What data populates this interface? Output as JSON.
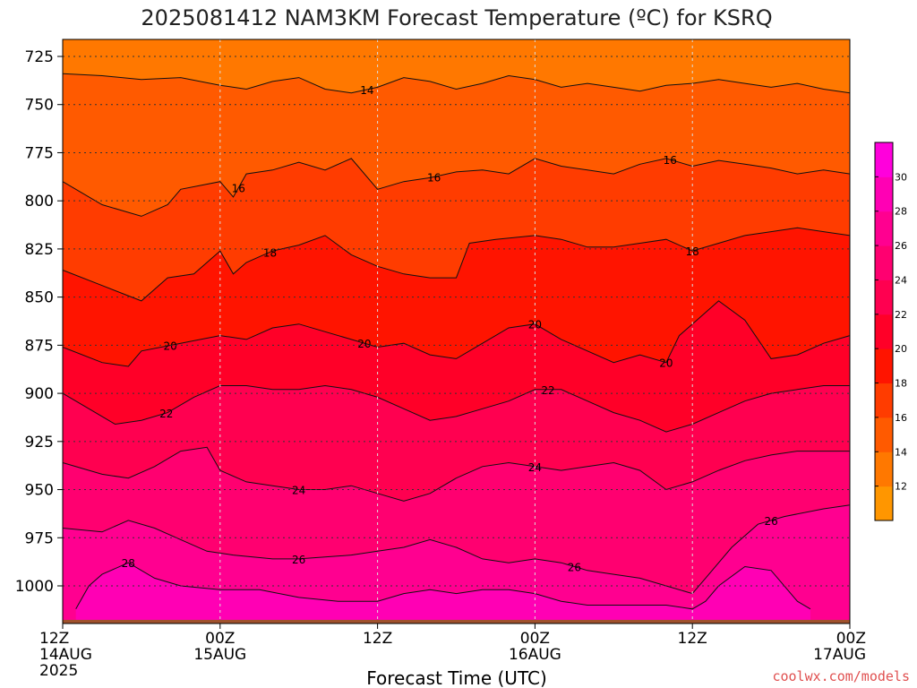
{
  "chart_data": {
    "type": "heatmap",
    "title": "2025081412 NAM3KM Forecast Temperature (ºC) for KSRQ",
    "xlabel": "Forecast Time (UTC)",
    "ylabel": "",
    "credit": "coolwx.com/models",
    "x_ticks": [
      {
        "hour": 0,
        "line1": "12Z",
        "line2": "14AUG",
        "line3": "2025"
      },
      {
        "hour": 12,
        "line1": "00Z",
        "line2": "15AUG",
        "line3": ""
      },
      {
        "hour": 24,
        "line1": "12Z",
        "line2": "",
        "line3": ""
      },
      {
        "hour": 36,
        "line1": "00Z",
        "line2": "16AUG",
        "line3": ""
      },
      {
        "hour": 48,
        "line1": "12Z",
        "line2": "",
        "line3": ""
      },
      {
        "hour": 60,
        "line1": "00Z",
        "line2": "17AUG",
        "line3": ""
      }
    ],
    "xlim_hours": [
      0,
      60
    ],
    "y_ticks": [
      "725",
      "750",
      "775",
      "800",
      "825",
      "850",
      "875",
      "900",
      "925",
      "950",
      "975",
      "1000"
    ],
    "ylim_hpa": [
      717,
      1017
    ],
    "y_axis_inverted": true,
    "grid": true,
    "colorbar": {
      "placement": "right",
      "ticks": [
        "12",
        "14",
        "16",
        "18",
        "20",
        "22",
        "24",
        "26",
        "28",
        "30"
      ],
      "bands": [
        {
          "from": 10,
          "to": 12,
          "color": "#ff9600"
        },
        {
          "from": 12,
          "to": 14,
          "color": "#ff7800"
        },
        {
          "from": 14,
          "to": 16,
          "color": "#ff5a00"
        },
        {
          "from": 16,
          "to": 18,
          "color": "#ff3c00"
        },
        {
          "from": 18,
          "to": 20,
          "color": "#ff1400"
        },
        {
          "from": 20,
          "to": 22,
          "color": "#ff0028"
        },
        {
          "from": 22,
          "to": 24,
          "color": "#ff0050"
        },
        {
          "from": 24,
          "to": 26,
          "color": "#ff0070"
        },
        {
          "from": 26,
          "to": 28,
          "color": "#ff0090"
        },
        {
          "from": 28,
          "to": 30,
          "color": "#ff00b4"
        },
        {
          "from": 30,
          "to": 32,
          "color": "#ff00dc"
        }
      ]
    },
    "contours": [
      {
        "level": 14,
        "label": "14",
        "label_at_hours": [
          23.2
        ],
        "points": [
          [
            0,
            734
          ],
          [
            3,
            735
          ],
          [
            6,
            737
          ],
          [
            9,
            736
          ],
          [
            12,
            740
          ],
          [
            14,
            742
          ],
          [
            16,
            738
          ],
          [
            18,
            736
          ],
          [
            20,
            742
          ],
          [
            22,
            744
          ],
          [
            24,
            741
          ],
          [
            26,
            736
          ],
          [
            28,
            738
          ],
          [
            30,
            742
          ],
          [
            32,
            739
          ],
          [
            34,
            735
          ],
          [
            36,
            737
          ],
          [
            38,
            741
          ],
          [
            40,
            739
          ],
          [
            42,
            741
          ],
          [
            44,
            743
          ],
          [
            46,
            740
          ],
          [
            48,
            739
          ],
          [
            50,
            737
          ],
          [
            52,
            739
          ],
          [
            54,
            741
          ],
          [
            56,
            739
          ],
          [
            58,
            742
          ],
          [
            60,
            744
          ]
        ]
      },
      {
        "level": 16,
        "label": "16",
        "label_at_hours": [
          13.4,
          28.3,
          46.3
        ],
        "points": [
          [
            0,
            790
          ],
          [
            3,
            802
          ],
          [
            6,
            808
          ],
          [
            8,
            802
          ],
          [
            9,
            794
          ],
          [
            12,
            790
          ],
          [
            13,
            798
          ],
          [
            14,
            786
          ],
          [
            16,
            784
          ],
          [
            18,
            780
          ],
          [
            20,
            784
          ],
          [
            22,
            778
          ],
          [
            24,
            794
          ],
          [
            26,
            790
          ],
          [
            28,
            788
          ],
          [
            30,
            785
          ],
          [
            32,
            784
          ],
          [
            34,
            786
          ],
          [
            36,
            778
          ],
          [
            38,
            782
          ],
          [
            40,
            784
          ],
          [
            42,
            786
          ],
          [
            44,
            781
          ],
          [
            46,
            778
          ],
          [
            48,
            782
          ],
          [
            50,
            779
          ],
          [
            52,
            781
          ],
          [
            54,
            783
          ],
          [
            56,
            786
          ],
          [
            58,
            784
          ],
          [
            60,
            786
          ]
        ]
      },
      {
        "level": 18,
        "label": "18",
        "label_at_hours": [
          15.8,
          48.0
        ],
        "points": [
          [
            0,
            836
          ],
          [
            3,
            844
          ],
          [
            6,
            852
          ],
          [
            8,
            840
          ],
          [
            10,
            838
          ],
          [
            12,
            826
          ],
          [
            13,
            838
          ],
          [
            14,
            832
          ],
          [
            16,
            826
          ],
          [
            18,
            823
          ],
          [
            20,
            818
          ],
          [
            22,
            828
          ],
          [
            24,
            834
          ],
          [
            26,
            838
          ],
          [
            28,
            840
          ],
          [
            30,
            840
          ],
          [
            31,
            822
          ],
          [
            33,
            820
          ],
          [
            36,
            818
          ],
          [
            38,
            820
          ],
          [
            40,
            824
          ],
          [
            42,
            824
          ],
          [
            44,
            822
          ],
          [
            46,
            820
          ],
          [
            48,
            826
          ],
          [
            50,
            822
          ],
          [
            52,
            818
          ],
          [
            54,
            816
          ],
          [
            56,
            814
          ],
          [
            58,
            816
          ],
          [
            60,
            818
          ]
        ]
      },
      {
        "level": 20,
        "label": "20",
        "label_at_hours": [
          8.2,
          23.0,
          36.0,
          46.0
        ],
        "points": [
          [
            0,
            876
          ],
          [
            3,
            884
          ],
          [
            5,
            886
          ],
          [
            6,
            878
          ],
          [
            9,
            874
          ],
          [
            12,
            870
          ],
          [
            14,
            872
          ],
          [
            16,
            866
          ],
          [
            18,
            864
          ],
          [
            20,
            868
          ],
          [
            22,
            872
          ],
          [
            24,
            876
          ],
          [
            26,
            874
          ],
          [
            28,
            880
          ],
          [
            30,
            882
          ],
          [
            32,
            874
          ],
          [
            34,
            866
          ],
          [
            36,
            864
          ],
          [
            38,
            872
          ],
          [
            40,
            878
          ],
          [
            42,
            884
          ],
          [
            44,
            880
          ],
          [
            46,
            884
          ],
          [
            47,
            870
          ],
          [
            48,
            864
          ],
          [
            50,
            852
          ],
          [
            52,
            862
          ],
          [
            54,
            882
          ],
          [
            56,
            880
          ],
          [
            58,
            874
          ],
          [
            60,
            870
          ]
        ]
      },
      {
        "level": 22,
        "label": "22",
        "label_at_hours": [
          7.9,
          37.0
        ],
        "points": [
          [
            0,
            900
          ],
          [
            3,
            912
          ],
          [
            4,
            916
          ],
          [
            6,
            914
          ],
          [
            8,
            910
          ],
          [
            10,
            902
          ],
          [
            12,
            896
          ],
          [
            14,
            896
          ],
          [
            16,
            898
          ],
          [
            18,
            898
          ],
          [
            20,
            896
          ],
          [
            22,
            898
          ],
          [
            24,
            902
          ],
          [
            26,
            908
          ],
          [
            28,
            914
          ],
          [
            30,
            912
          ],
          [
            32,
            908
          ],
          [
            34,
            904
          ],
          [
            36,
            898
          ],
          [
            38,
            898
          ],
          [
            40,
            904
          ],
          [
            42,
            910
          ],
          [
            44,
            914
          ],
          [
            46,
            920
          ],
          [
            48,
            916
          ],
          [
            50,
            910
          ],
          [
            52,
            904
          ],
          [
            54,
            900
          ],
          [
            56,
            898
          ],
          [
            58,
            896
          ],
          [
            60,
            896
          ]
        ]
      },
      {
        "level": 24,
        "label": "24",
        "label_at_hours": [
          18.0,
          36.0
        ],
        "points": [
          [
            0,
            936
          ],
          [
            3,
            942
          ],
          [
            5,
            944
          ],
          [
            7,
            938
          ],
          [
            9,
            930
          ],
          [
            11,
            928
          ],
          [
            12,
            940
          ],
          [
            14,
            946
          ],
          [
            16,
            948
          ],
          [
            18,
            950
          ],
          [
            20,
            950
          ],
          [
            22,
            948
          ],
          [
            24,
            952
          ],
          [
            26,
            956
          ],
          [
            28,
            952
          ],
          [
            30,
            944
          ],
          [
            32,
            938
          ],
          [
            34,
            936
          ],
          [
            36,
            938
          ],
          [
            38,
            940
          ],
          [
            40,
            938
          ],
          [
            42,
            936
          ],
          [
            44,
            940
          ],
          [
            46,
            950
          ],
          [
            48,
            946
          ],
          [
            50,
            940
          ],
          [
            52,
            935
          ],
          [
            54,
            932
          ],
          [
            56,
            930
          ],
          [
            58,
            930
          ],
          [
            60,
            930
          ]
        ]
      },
      {
        "level": 26,
        "label": "26",
        "label_at_hours": [
          18.0,
          39.0,
          54.0
        ],
        "points": [
          [
            0,
            970
          ],
          [
            3,
            972
          ],
          [
            5,
            966
          ],
          [
            7,
            970
          ],
          [
            9,
            976
          ],
          [
            11,
            982
          ],
          [
            13,
            984
          ],
          [
            16,
            986
          ],
          [
            18,
            986
          ],
          [
            20,
            985
          ],
          [
            22,
            984
          ],
          [
            24,
            982
          ],
          [
            26,
            980
          ],
          [
            28,
            976
          ],
          [
            30,
            980
          ],
          [
            32,
            986
          ],
          [
            34,
            988
          ],
          [
            36,
            986
          ],
          [
            38,
            988
          ],
          [
            40,
            992
          ],
          [
            42,
            994
          ],
          [
            44,
            996
          ],
          [
            46,
            1000
          ],
          [
            48,
            1004
          ],
          [
            49,
            996
          ],
          [
            51,
            980
          ],
          [
            53,
            968
          ],
          [
            55,
            964
          ],
          [
            58,
            960
          ],
          [
            60,
            958
          ]
        ]
      },
      {
        "level": 28,
        "label": "28",
        "label_at_hours": [
          5.0
        ],
        "points": [
          [
            1,
            1012
          ],
          [
            2,
            1000
          ],
          [
            3,
            994
          ],
          [
            5,
            988
          ],
          [
            7,
            996
          ],
          [
            9,
            1000
          ],
          [
            12,
            1002
          ],
          [
            15,
            1002
          ],
          [
            18,
            1006
          ],
          [
            21,
            1008
          ],
          [
            24,
            1008
          ],
          [
            26,
            1004
          ],
          [
            28,
            1002
          ],
          [
            30,
            1004
          ],
          [
            32,
            1002
          ],
          [
            34,
            1002
          ],
          [
            36,
            1004
          ],
          [
            38,
            1008
          ],
          [
            40,
            1010
          ],
          [
            42,
            1010
          ],
          [
            44,
            1010
          ],
          [
            46,
            1010
          ],
          [
            48,
            1012
          ],
          [
            49,
            1008
          ],
          [
            50,
            1000
          ],
          [
            52,
            990
          ],
          [
            54,
            992
          ],
          [
            56,
            1008
          ],
          [
            57,
            1012
          ]
        ]
      }
    ],
    "ground": {
      "color": "#a0522d",
      "top_hpa": 1013
    }
  }
}
